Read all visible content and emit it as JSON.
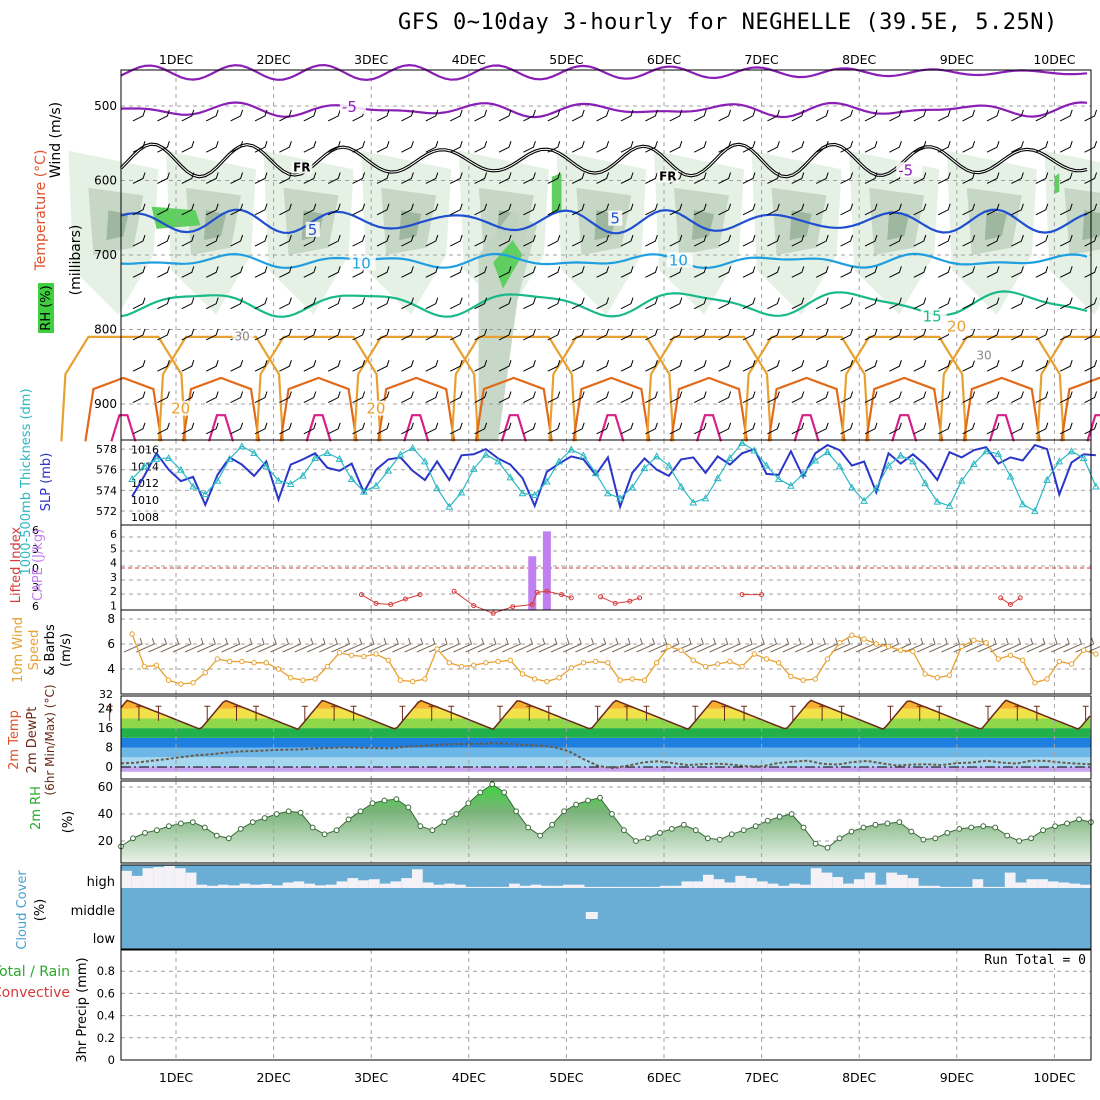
{
  "title": "GFS 0~10day 3-hourly for NEGHELLE (39.5E, 5.25N)",
  "date_labels": [
    "1DEC",
    "2DEC",
    "3DEC",
    "4DEC",
    "5DEC",
    "6DEC",
    "7DEC",
    "8DEC",
    "9DEC",
    "10DEC"
  ],
  "colors": {
    "grid": "#a0a0a0",
    "rh_light": "#e2f0e2",
    "rh_mid": "#c2d4c2",
    "rh_dark": "#8fa88f",
    "rh_green": "#5fcf5f",
    "t_purple": "#8a1fb5",
    "t_blue": "#1f4fd0",
    "t_cyan": "#1f9ee0",
    "t_teal": "#19b98a",
    "t_orange": "#e8a030",
    "t_dorange": "#e06a1a",
    "t_magenta": "#d81f8a",
    "thick": "#2a36c8",
    "slp": "#2bb8c4",
    "li": "#d63a3a",
    "cape": "#c080f0",
    "wind10": "#e8a030",
    "barb": "#7a6a5a",
    "rh2m": "#3a9e3a",
    "cloud_bg": "#6aaed6",
    "cloud_fill": "#f4f2f6"
  },
  "chart_data": [
    {
      "type": "contour",
      "panel": "upper-air",
      "ylabel_parts": [
        "Wind (m/s)",
        "Temperature (°C)",
        "RH (%)",
        "(millibars)"
      ],
      "y_ticks": [
        500,
        600,
        700,
        800,
        900
      ],
      "ylim": [
        455,
        950
      ],
      "contour_labels": [
        {
          "text": "-5",
          "x": 1.7,
          "y": 508,
          "color": "t_purple"
        },
        {
          "text": "-5",
          "x": 7.4,
          "y": 593,
          "color": "t_purple"
        },
        {
          "text": "FR",
          "x": 1.2,
          "y": 588,
          "color": "black"
        },
        {
          "text": "FR",
          "x": 4.95,
          "y": 600,
          "color": "black"
        },
        {
          "text": "5",
          "x": 1.35,
          "y": 673,
          "color": "t_blue"
        },
        {
          "text": "5",
          "x": 4.45,
          "y": 658,
          "color": "t_blue"
        },
        {
          "text": "10",
          "x": 1.8,
          "y": 718,
          "color": "t_cyan"
        },
        {
          "text": "10",
          "x": 5.05,
          "y": 714,
          "color": "t_cyan"
        },
        {
          "text": "15",
          "x": 7.65,
          "y": 789,
          "color": "t_teal"
        },
        {
          "text": "20",
          "x": 7.9,
          "y": 803,
          "color": "t_orange"
        },
        {
          "text": "20",
          "x": -0.05,
          "y": 913,
          "color": "t_orange"
        },
        {
          "text": "20",
          "x": 1.95,
          "y": 913,
          "color": "t_orange"
        },
        {
          "text": "30",
          "x": 0.6,
          "y": 815,
          "color": "grey"
        },
        {
          "text": "30",
          "x": 8.2,
          "y": 840,
          "color": "grey"
        }
      ]
    },
    {
      "type": "line",
      "panel": "thickness-slp",
      "ylabel_left": "1000-500mb Thickness (dm)",
      "ylabel_right": "SLP (mb)",
      "left_ticks": [
        572,
        574,
        576,
        578
      ],
      "left_ylim": [
        570.8,
        579.0
      ],
      "right_ticks": [
        1008,
        1010,
        1012,
        1014,
        1016
      ],
      "right_ylim": [
        1007.2,
        1017.0
      ],
      "series": [
        {
          "name": "thickness",
          "color": "thick",
          "values": [
            573.4,
            575.4,
            577.6,
            576.0,
            574.9,
            575.3,
            572.6,
            575.5,
            577.2,
            576.5,
            575.4,
            576.8,
            573.1,
            576.5,
            577.0,
            577.6,
            576.2,
            575.9,
            576.6,
            573.8,
            576.0,
            577.0,
            577.2,
            575.9,
            575.0,
            576.8,
            575.0,
            577.4,
            577.5,
            578.0,
            577.1,
            576.5,
            575.2,
            572.5,
            575.8,
            576.6,
            577.3,
            577.0,
            575.5,
            577.2,
            572.4,
            575.7,
            577.1,
            576.0,
            575.4,
            577.0,
            577.2,
            575.7,
            577.3,
            576.5,
            577.6,
            578.0,
            575.6,
            575.5,
            577.8,
            575.3,
            577.6,
            578.4,
            577.9,
            576.4,
            576.8,
            573.8,
            577.6,
            576.6,
            577.5,
            576.5,
            575.0,
            577.7,
            577.2,
            577.9,
            578.2,
            576.6,
            577.2,
            576.9,
            578.4,
            578.0,
            573.6,
            576.7,
            577.5,
            577.4
          ]
        },
        {
          "name": "slp",
          "color": "slp",
          "values": [
            1012.5,
            1014.0,
            1014.9,
            1015.0,
            1013.6,
            1011.6,
            1010.7,
            1012.3,
            1014.9,
            1016.4,
            1015.6,
            1014.0,
            1012.3,
            1011.9,
            1012.9,
            1015.0,
            1015.6,
            1014.9,
            1012.5,
            1011.0,
            1011.7,
            1013.5,
            1015.4,
            1016.2,
            1014.6,
            1011.4,
            1009.2,
            1010.9,
            1013.7,
            1015.4,
            1014.6,
            1012.7,
            1010.8,
            1010.6,
            1012.2,
            1014.6,
            1016.0,
            1015.3,
            1013.2,
            1010.8,
            1010.2,
            1011.5,
            1013.8,
            1015.2,
            1014.1,
            1011.6,
            1009.7,
            1010.2,
            1012.6,
            1015.0,
            1016.8,
            1015.9,
            1014.1,
            1012.5,
            1011.7,
            1013.1,
            1014.7,
            1015.7,
            1014.0,
            1011.5,
            1009.9,
            1011.4,
            1014.1,
            1015.3,
            1014.6,
            1012.0,
            1009.8,
            1009.3,
            1012.3,
            1014.3,
            1015.8,
            1015.5,
            1012.8,
            1009.5,
            1008.7,
            1012.4,
            1014.6,
            1015.8,
            1015.0,
            1011.6
          ]
        }
      ]
    },
    {
      "type": "bar+line",
      "panel": "li-cape",
      "ylabel_left": "Lifted Index",
      "ylabel_right": "CAPE (J/kg)",
      "li_ticks_top": [
        "6",
        "3",
        "0",
        "3",
        "6"
      ],
      "cape_ticks": [
        "6",
        "5",
        "4",
        "3",
        "2",
        "1"
      ],
      "li_ylim": [
        -6,
        6
      ],
      "li_zero": 0,
      "cape_bars": [
        {
          "t": 3.65,
          "value": 4.1
        },
        {
          "t": 3.8,
          "value": 6.0
        }
      ],
      "li_values": [
        [
          2.85,
          2.2
        ],
        [
          3.05,
          0.9
        ],
        [
          3.25,
          0.2
        ],
        [
          3.45,
          0.8
        ],
        [
          3.65,
          1.0
        ],
        [
          3.7,
          2.1
        ],
        [
          3.8,
          2.2
        ],
        [
          3.95,
          1.9
        ],
        [
          4.05,
          1.6
        ],
        [
          1.9,
          1.9
        ],
        [
          2.05,
          1.1
        ],
        [
          2.2,
          1.0
        ],
        [
          2.35,
          1.5
        ],
        [
          2.5,
          1.9
        ],
        [
          4.35,
          1.7
        ],
        [
          4.5,
          1.1
        ],
        [
          4.65,
          1.3
        ],
        [
          4.75,
          1.6
        ],
        [
          8.45,
          1.6
        ],
        [
          8.55,
          1.0
        ],
        [
          8.65,
          1.6
        ],
        [
          5.8,
          1.9
        ],
        [
          6.0,
          1.9
        ]
      ]
    },
    {
      "type": "line",
      "panel": "wind10m",
      "ylabel": "10m Wind Speed & Barbs (m/s)",
      "y_ticks": [
        4,
        6,
        8
      ],
      "ylim": [
        2.2,
        8.6
      ],
      "series": [
        {
          "name": "speed",
          "color": "wind10",
          "values": [
            6.8,
            4.2,
            4.3,
            3.1,
            2.8,
            2.9,
            3.7,
            4.8,
            4.6,
            4.6,
            4.5,
            4.5,
            4.0,
            3.3,
            3.1,
            3.2,
            4.2,
            5.3,
            5.1,
            5.0,
            5.2,
            4.7,
            3.1,
            3.0,
            3.2,
            5.6,
            4.5,
            4.2,
            4.3,
            4.5,
            4.6,
            4.7,
            3.6,
            3.2,
            3.0,
            3.3,
            4.1,
            4.5,
            4.6,
            4.5,
            3.1,
            3.2,
            3.1,
            4.5,
            5.8,
            5.5,
            4.7,
            4.2,
            4.4,
            4.6,
            4.2,
            5.2,
            4.8,
            4.5,
            3.4,
            3.1,
            3.2,
            4.8,
            6.1,
            6.7,
            6.4,
            6.0,
            5.8,
            5.5,
            5.4,
            3.6,
            3.3,
            3.5,
            5.8,
            6.3,
            6.1,
            4.8,
            5.1,
            4.7,
            2.9,
            3.2,
            4.6,
            4.4,
            5.5,
            5.2
          ]
        }
      ]
    },
    {
      "type": "area",
      "panel": "temp-dewpoint",
      "ylabel_parts": [
        "2m Temp",
        "2m DewPt",
        "(6hr Min/Max) (°C)"
      ],
      "y_ticks": [
        0,
        8,
        16,
        24
      ],
      "top_tick": "32",
      "ylim": [
        -2,
        32
      ],
      "temp_bands": [
        [
          -2,
          0,
          "#c9a4f0"
        ],
        [
          0,
          4,
          "#a8d8f0"
        ],
        [
          4,
          8,
          "#6cb6e8"
        ],
        [
          8,
          12,
          "#1f7fe0"
        ],
        [
          12,
          16,
          "#22b04a"
        ],
        [
          16,
          20,
          "#8fd84a"
        ],
        [
          20,
          24,
          "#f2e24a"
        ],
        [
          24,
          28,
          "#f7b030"
        ],
        [
          28,
          32,
          "#f07820"
        ]
      ],
      "temp_daily": {
        "min": 15.5,
        "max": 27.5
      },
      "dewpt_values": [
        1.5,
        1.8,
        2.5,
        3.2,
        4.0,
        4.8,
        5.2,
        5.9,
        6.4,
        6.6,
        6.9,
        7.1,
        7.2,
        7.6,
        7.8,
        8.1,
        8.0,
        7.8,
        7.6,
        8.3,
        8.6,
        9.1,
        9.4,
        9.5,
        9.5,
        9.8,
        9.6,
        9.1,
        8.8,
        8.2,
        6.5,
        3.2,
        0.4,
        -0.5,
        0.6,
        1.9,
        2.4,
        1.6,
        0.8,
        1.2,
        1.4,
        0.9,
        0.3,
        0.3,
        1.6,
        2.2,
        2.6,
        1.3,
        1.0,
        2.0,
        2.5,
        1.5,
        0.6,
        1.0,
        1.1,
        0.8,
        1.6,
        1.8,
        2.6,
        1.8,
        1.4,
        2.6,
        2.5,
        1.8,
        1.4,
        1.1
      ]
    },
    {
      "type": "area",
      "panel": "rh2m",
      "ylabel": "2m RH (%)",
      "y_ticks": [
        20,
        40,
        60
      ],
      "ylim": [
        5,
        66
      ],
      "series": [
        {
          "name": "rh",
          "color": "rh2m",
          "values": [
            16,
            22,
            26,
            28,
            31,
            33,
            34,
            30,
            24,
            22,
            29,
            34,
            37,
            40,
            42,
            41,
            30,
            25,
            28,
            36,
            42,
            48,
            50,
            51,
            45,
            31,
            28,
            34,
            40,
            48,
            56,
            62,
            56,
            42,
            30,
            24,
            32,
            42,
            47,
            50,
            52,
            40,
            28,
            20,
            22,
            26,
            29,
            32,
            28,
            22,
            21,
            25,
            28,
            31,
            35,
            38,
            40,
            30,
            18,
            15,
            22,
            27,
            30,
            32,
            33,
            34,
            27,
            21,
            22,
            26,
            29,
            30,
            31,
            30,
            24,
            20,
            22,
            28,
            31,
            33,
            36,
            34
          ]
        }
      ]
    },
    {
      "type": "bar",
      "panel": "cloud-cover",
      "ylabel": "Cloud Cover (%)",
      "y_labels": [
        "high",
        "middle",
        "low"
      ],
      "high_values": [
        0.78,
        0.55,
        0.9,
        0.95,
        1.0,
        0.9,
        0.7,
        0.15,
        0.1,
        0.15,
        0.12,
        0.2,
        0.15,
        0.18,
        0.12,
        0.25,
        0.3,
        0.2,
        0.12,
        0.15,
        0.3,
        0.45,
        0.35,
        0.4,
        0.2,
        0.3,
        0.45,
        0.85,
        0.25,
        0.15,
        0.2,
        0.15,
        0.05,
        0.05,
        0.05,
        0.05,
        0.2,
        0.1,
        0.15,
        0.1,
        0.1,
        0.15,
        0.15,
        0.05,
        0.05,
        0.05,
        0.05,
        0.05,
        0.05,
        0.05,
        0.1,
        0.1,
        0.3,
        0.3,
        0.6,
        0.4,
        0.25,
        0.55,
        0.45,
        0.3,
        0.2,
        0.1,
        0.2,
        0.15,
        0.9,
        0.7,
        0.5,
        0.2,
        0.4,
        0.7,
        0.15,
        0.7,
        0.6,
        0.45,
        0.1,
        0.1,
        0.05,
        0.05,
        0.05,
        0.4,
        0.05,
        0.05,
        0.7,
        0.25,
        0.4,
        0.4,
        0.3,
        0.25,
        0.2,
        0.15
      ],
      "middle_patches": [
        {
          "t": 4.25,
          "value": 0.25
        }
      ]
    },
    {
      "type": "bar",
      "panel": "precip",
      "ylabel_parts": [
        "Total / Rain",
        "Convective",
        "3hr Precip (mm)"
      ],
      "y_ticks": [
        "0",
        "0.2",
        "0.4",
        "0.6",
        "0.8"
      ],
      "ylim": [
        0,
        1.0
      ],
      "run_total": "Run Total = 0",
      "values": []
    }
  ]
}
